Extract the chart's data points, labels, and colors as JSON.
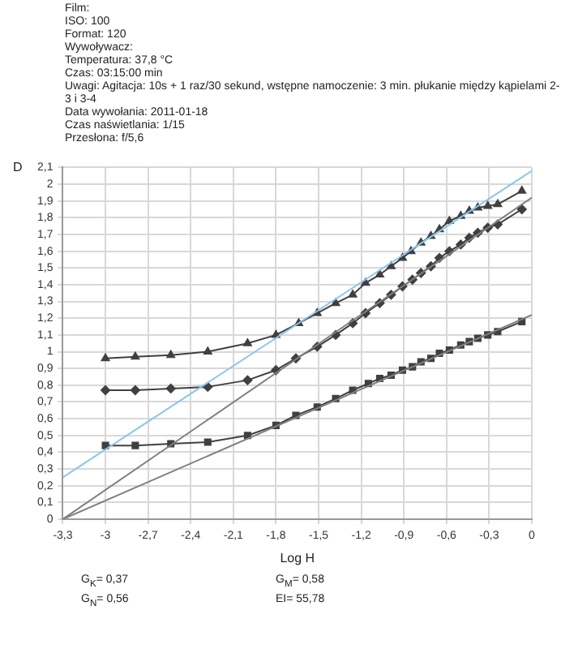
{
  "chart_data": {
    "type": "line",
    "xlabel": "Log H",
    "ylabel": "D",
    "annotations": [
      "Film:",
      "ISO: 100",
      "Format: 120",
      "Wywoływacz:",
      "Temperatura: 37,8 °C",
      "Czas: 03:15:00 min",
      "Uwagi: Agitacja: 10s + 1 raz/30 sekund, wstępne namoczenie: 3 min. płukanie między kąpielami 2-3 i 3-4",
      "Data wywołania: 2011-01-18",
      "Czas naświetlania: 1/15",
      "Przesłona: f/5,6",
      "G$_{K}$= 0,37",
      "G$_{M}$= 0,58",
      "G$_{N}$= 0,56",
      "EI= 55,78"
    ],
    "xlim": [
      -3.3,
      0
    ],
    "ylim": [
      0,
      2.1
    ],
    "xticks": [
      {
        "value": -3.3,
        "label": "-3,3"
      },
      -3,
      {
        "value": -2.7,
        "label": "-2,7"
      },
      {
        "value": -2.4,
        "label": "-2,4"
      },
      {
        "value": -2.1,
        "label": "-2,1"
      },
      {
        "value": -1.8,
        "label": "-1,8"
      },
      {
        "value": -1.5,
        "label": "-1,5"
      },
      {
        "value": -1.2,
        "label": "-1,2"
      },
      {
        "value": -0.9,
        "label": "-0,9"
      },
      {
        "value": -0.6,
        "label": "-0,6"
      },
      {
        "value": -0.3,
        "label": "-0,3"
      },
      0
    ],
    "yticks": [
      0,
      {
        "value": 0.1,
        "label": "0,1"
      },
      {
        "value": 0.2,
        "label": "0,2"
      },
      {
        "value": 0.3,
        "label": "0,3"
      },
      {
        "value": 0.4,
        "label": "0,4"
      },
      {
        "value": 0.5,
        "label": "0,5"
      },
      {
        "value": 0.6,
        "label": "0,6"
      },
      {
        "value": 0.7,
        "label": "0,7"
      },
      {
        "value": 0.8,
        "label": "0,8"
      },
      {
        "value": 0.9,
        "label": "0,9"
      },
      1,
      {
        "value": 1.1,
        "label": "1,1"
      },
      {
        "value": 1.2,
        "label": "1,2"
      },
      {
        "value": 1.3,
        "label": "1,3"
      },
      {
        "value": 1.4,
        "label": "1,4"
      },
      {
        "value": 1.5,
        "label": "1,5"
      },
      {
        "value": 1.6,
        "label": "1,6"
      },
      {
        "value": 1.7,
        "label": "1,7"
      },
      {
        "value": 1.8,
        "label": "1,8"
      },
      {
        "value": 1.9,
        "label": "1,9"
      },
      2,
      {
        "value": 2.1,
        "label": "2,1"
      }
    ],
    "grid": true,
    "series": [
      {
        "color": "#87c6f0",
        "marker": "none",
        "x": [
          -3.3,
          0
        ],
        "values": [
          0.25,
          2.08
        ]
      },
      {
        "color": "#808080",
        "marker": "none",
        "x": [
          -3.3,
          0
        ],
        "values": [
          0,
          1.92
        ]
      },
      {
        "color": "#808080",
        "marker": "none",
        "x": [
          -3.3,
          0
        ],
        "values": [
          0,
          1.22
        ]
      },
      {
        "color": "#404040",
        "marker": "triangle",
        "x": [
          -3,
          -2.79,
          -2.54,
          -2.28,
          -2,
          -1.8,
          -1.64,
          -1.51,
          -1.38,
          -1.26,
          -1.17,
          -1.07,
          -0.99,
          -0.91,
          -0.85,
          -0.78,
          -0.71,
          -0.65,
          -0.58,
          -0.5,
          -0.44,
          -0.38,
          -0.31,
          -0.24,
          -0.07
        ],
        "values": [
          0.96,
          0.97,
          0.98,
          1,
          1.05,
          1.1,
          1.17,
          1.23,
          1.29,
          1.34,
          1.41,
          1.46,
          1.51,
          1.56,
          1.6,
          1.65,
          1.69,
          1.73,
          1.78,
          1.81,
          1.84,
          1.86,
          1.87,
          1.88,
          1.96
        ]
      },
      {
        "color": "#404040",
        "marker": "diamond",
        "x": [
          -3,
          -2.79,
          -2.54,
          -2.28,
          -2,
          -1.8,
          -1.66,
          -1.51,
          -1.38,
          -1.26,
          -1.17,
          -1.07,
          -0.99,
          -0.91,
          -0.84,
          -0.78,
          -0.71,
          -0.65,
          -0.58,
          -0.5,
          -0.44,
          -0.38,
          -0.31,
          -0.24,
          -0.07
        ],
        "values": [
          0.77,
          0.77,
          0.78,
          0.79,
          0.83,
          0.89,
          0.96,
          1.03,
          1.1,
          1.17,
          1.23,
          1.29,
          1.34,
          1.39,
          1.43,
          1.47,
          1.51,
          1.56,
          1.6,
          1.64,
          1.68,
          1.71,
          1.74,
          1.76,
          1.85
        ]
      },
      {
        "color": "#404040",
        "marker": "square",
        "x": [
          -3,
          -2.79,
          -2.54,
          -2.28,
          -2,
          -1.8,
          -1.66,
          -1.51,
          -1.38,
          -1.26,
          -1.15,
          -1.07,
          -0.99,
          -0.91,
          -0.84,
          -0.78,
          -0.71,
          -0.65,
          -0.58,
          -0.5,
          -0.44,
          -0.38,
          -0.31,
          -0.24,
          -0.07
        ],
        "values": [
          0.44,
          0.44,
          0.45,
          0.46,
          0.5,
          0.56,
          0.62,
          0.67,
          0.72,
          0.77,
          0.81,
          0.84,
          0.86,
          0.89,
          0.91,
          0.94,
          0.96,
          0.99,
          1.01,
          1.04,
          1.06,
          1.08,
          1.1,
          1.12,
          1.18
        ]
      }
    ]
  }
}
